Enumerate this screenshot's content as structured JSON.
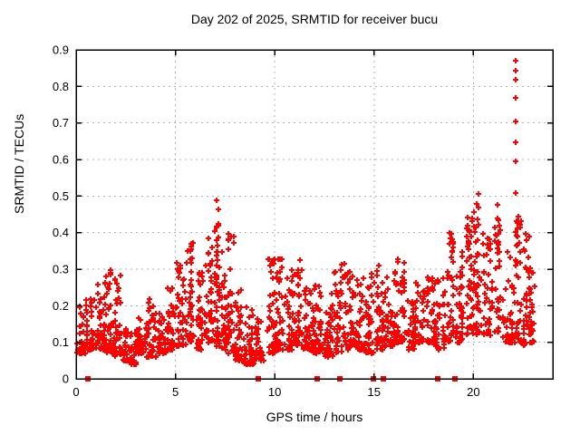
{
  "window": {
    "background": "#ffffff"
  },
  "chart_data": {
    "type": "scatter",
    "title": "Day 202 of 2025, SRMTID for receiver bucu",
    "xlabel": "GPS time / hours",
    "ylabel": "SRMTID / TECUs",
    "xlim": [
      0,
      24
    ],
    "ylim": [
      0,
      0.9
    ],
    "xticks": {
      "values": [
        0,
        5,
        10,
        15,
        20
      ],
      "labels": [
        "0",
        "5",
        "10",
        "15",
        "20"
      ]
    },
    "yticks": {
      "values": [
        0,
        0.1,
        0.2,
        0.3,
        0.4,
        0.5,
        0.6,
        0.7,
        0.8,
        0.9
      ],
      "labels": [
        "0",
        "0.1",
        "0.2",
        "0.3",
        "0.4",
        "0.5",
        "0.6",
        "0.7",
        "0.8",
        "0.9"
      ]
    },
    "grid": true,
    "legend": null,
    "marker": "plus",
    "zero_marker": "filled-square",
    "colors": {
      "points": "#ff0000",
      "grid": "#b0b0b0",
      "frame": "#000000",
      "text": "#000000"
    },
    "seed": 7,
    "clusters": [
      [
        0.25,
        0.25,
        0.07,
        0.2,
        40,
        2.0
      ],
      [
        0.75,
        0.25,
        0.08,
        0.22,
        44,
        2.0
      ],
      [
        1.25,
        0.25,
        0.08,
        0.27,
        40,
        1.8
      ],
      [
        1.75,
        0.25,
        0.07,
        0.3,
        44,
        1.6
      ],
      [
        2.1,
        0.15,
        0.06,
        0.3,
        24,
        1.4
      ],
      [
        2.4,
        0.2,
        0.05,
        0.14,
        30,
        2.0
      ],
      [
        2.85,
        0.2,
        0.04,
        0.13,
        30,
        2.0
      ],
      [
        3.3,
        0.25,
        0.07,
        0.17,
        40,
        2.0
      ],
      [
        3.8,
        0.25,
        0.06,
        0.22,
        40,
        2.0
      ],
      [
        4.3,
        0.25,
        0.07,
        0.18,
        40,
        2.0
      ],
      [
        4.8,
        0.25,
        0.08,
        0.25,
        40,
        2.0
      ],
      [
        5.3,
        0.25,
        0.09,
        0.33,
        44,
        1.8
      ],
      [
        5.75,
        0.2,
        0.1,
        0.38,
        40,
        1.5
      ],
      [
        6.2,
        0.2,
        0.08,
        0.3,
        36,
        1.8
      ],
      [
        6.7,
        0.2,
        0.1,
        0.44,
        40,
        1.5
      ],
      [
        7.1,
        0.15,
        0.08,
        0.49,
        46,
        1.3
      ],
      [
        7.45,
        0.15,
        0.08,
        0.35,
        30,
        1.8
      ],
      [
        7.8,
        0.15,
        0.07,
        0.41,
        34,
        1.5
      ],
      [
        8.2,
        0.2,
        0.05,
        0.25,
        36,
        2.0
      ],
      [
        8.7,
        0.25,
        0.04,
        0.2,
        40,
        2.2
      ],
      [
        9.2,
        0.25,
        0.05,
        0.18,
        40,
        2.2
      ],
      [
        9.8,
        0.2,
        0.07,
        0.33,
        40,
        1.8
      ],
      [
        10.2,
        0.2,
        0.08,
        0.36,
        40,
        1.7
      ],
      [
        10.7,
        0.25,
        0.08,
        0.3,
        40,
        2.0
      ],
      [
        11.2,
        0.2,
        0.09,
        0.35,
        40,
        1.8
      ],
      [
        11.7,
        0.25,
        0.08,
        0.25,
        40,
        2.0
      ],
      [
        12.2,
        0.25,
        0.07,
        0.28,
        40,
        2.0
      ],
      [
        12.7,
        0.25,
        0.06,
        0.25,
        40,
        2.2
      ],
      [
        13.2,
        0.2,
        0.07,
        0.3,
        34,
        2.0
      ],
      [
        13.45,
        0.1,
        0.1,
        0.35,
        16,
        1.4
      ],
      [
        13.8,
        0.2,
        0.08,
        0.3,
        34,
        2.0
      ],
      [
        14.3,
        0.25,
        0.08,
        0.28,
        40,
        2.0
      ],
      [
        14.8,
        0.25,
        0.07,
        0.3,
        40,
        2.0
      ],
      [
        15.3,
        0.2,
        0.08,
        0.31,
        40,
        1.8
      ],
      [
        15.8,
        0.25,
        0.09,
        0.28,
        40,
        2.0
      ],
      [
        16.3,
        0.25,
        0.1,
        0.33,
        44,
        2.0
      ],
      [
        16.8,
        0.25,
        0.08,
        0.22,
        34,
        2.0
      ],
      [
        17.3,
        0.25,
        0.1,
        0.28,
        40,
        2.0
      ],
      [
        17.8,
        0.25,
        0.1,
        0.3,
        40,
        2.0
      ],
      [
        18.3,
        0.25,
        0.08,
        0.28,
        40,
        2.0
      ],
      [
        18.85,
        0.15,
        0.1,
        0.42,
        34,
        1.5
      ],
      [
        19.3,
        0.2,
        0.1,
        0.35,
        40,
        1.8
      ],
      [
        19.8,
        0.2,
        0.12,
        0.45,
        44,
        1.7
      ],
      [
        20.2,
        0.2,
        0.12,
        0.51,
        50,
        1.6
      ],
      [
        20.7,
        0.25,
        0.12,
        0.4,
        44,
        1.8
      ],
      [
        21.2,
        0.15,
        0.12,
        0.48,
        34,
        1.5
      ],
      [
        21.7,
        0.25,
        0.1,
        0.35,
        40,
        2.0
      ],
      [
        22.2,
        0.2,
        0.1,
        0.45,
        44,
        1.6
      ],
      [
        22.7,
        0.2,
        0.09,
        0.42,
        44,
        1.7
      ],
      [
        23.0,
        0.1,
        0.1,
        0.3,
        16,
        2.0
      ]
    ],
    "outlier_column": {
      "x": 22.15,
      "values": [
        0.509,
        0.596,
        0.648,
        0.703,
        0.768,
        0.819,
        0.844,
        0.871
      ]
    },
    "zero_markers_x": [
      0.59,
      9.17,
      12.13,
      13.27,
      14.95,
      15.45,
      18.22,
      19.05
    ]
  }
}
